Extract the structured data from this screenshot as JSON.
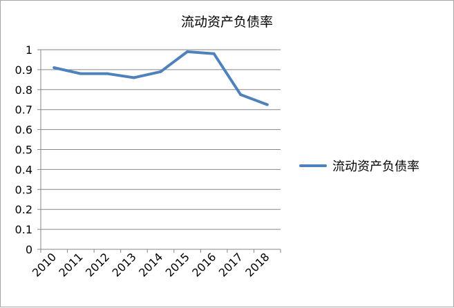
{
  "chart_data": {
    "type": "line",
    "title": "流动资产负债率",
    "xlabel": "",
    "ylabel": "",
    "categories": [
      "2010",
      "2011",
      "2012",
      "2013",
      "2014",
      "2015",
      "2016",
      "2017",
      "2018"
    ],
    "series": [
      {
        "name": "流动资产负债率",
        "values": [
          0.91,
          0.88,
          0.88,
          0.86,
          0.89,
          0.99,
          0.98,
          0.775,
          0.725
        ],
        "color": "#4f81bd"
      }
    ],
    "ylim": [
      0,
      1
    ],
    "yticks": [
      0,
      0.1,
      0.2,
      0.3,
      0.4,
      0.5,
      0.6,
      0.7,
      0.8,
      0.9,
      1
    ],
    "ytick_labels": [
      "0",
      "0.1",
      "0.2",
      "0.3",
      "0.4",
      "0.5",
      "0.6",
      "0.7",
      "0.8",
      "0.9",
      "1"
    ],
    "grid": true,
    "legend": "right"
  }
}
